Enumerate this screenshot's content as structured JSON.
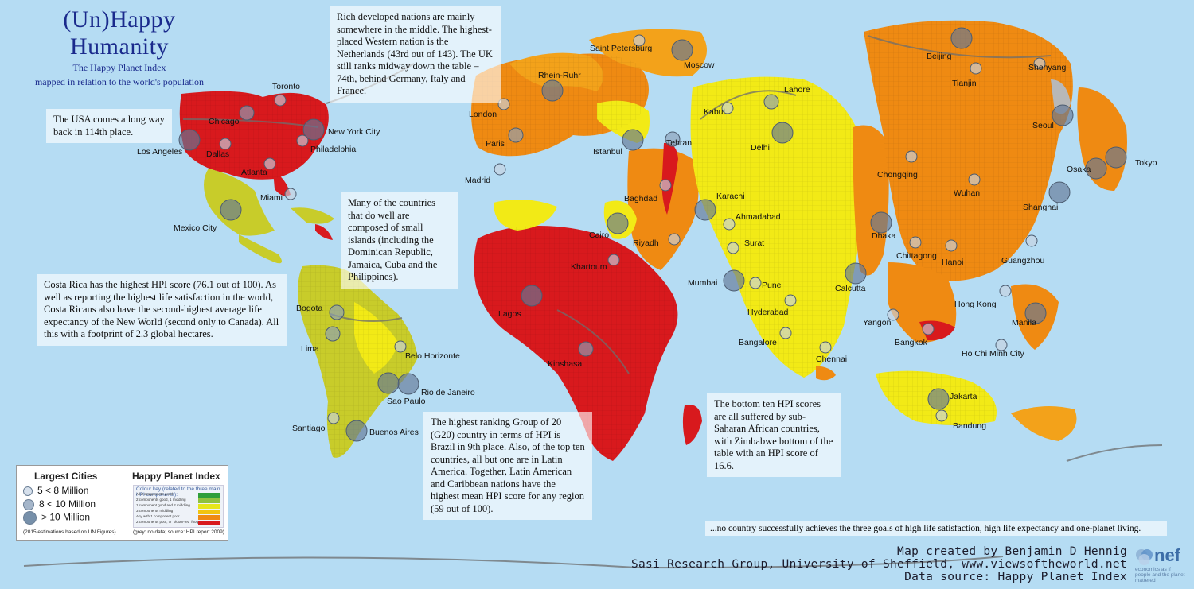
{
  "title": {
    "main": "(Un)Happy Humanity",
    "subtitle_1": "The Happy Planet Index",
    "subtitle_2": "mapped in relation to the world's population"
  },
  "notes": {
    "netherlands": "Rich developed nations are mainly somewhere in the middle. The highest-placed Western nation is the Netherlands (43rd out of 143). The UK still ranks midway down the table – 74th, behind Germany, Italy and France.",
    "usa": "The USA comes a long way back in 114th place.",
    "islands": "Many of the countries that do well are composed of small islands (including the Dominican Republic, Jamaica, Cuba and the Philippines).",
    "costa_rica": "Costa Rica has the highest HPI score (76.1 out of 100). As well as reporting the highest life satisfaction in the world, Costa Ricans also have the second-highest average life expectancy of the New World (second only to Canada). All this with a footprint of 2.3 global hectares.",
    "g20": "The highest ranking Group of 20 (G20) country in terms of HPI is Brazil in 9th place. Also, of the top ten countries, all but one are in Latin America. Together, Latin American and Caribbean nations have the highest mean HPI score for any region (59 out of 100).",
    "bottom_ten": "The bottom ten HPI scores are all suffered by sub-Saharan African countries, with Zimbabwe bottom of the table with an HPI score of 16.6.",
    "quote": "...no country successfully achieves the three goals of high life satisfaction, high life expectancy and one-planet living."
  },
  "legend": {
    "cities_title": "Largest Cities",
    "hpi_title": "Happy Planet Index",
    "size_small": "5 < 8 Million",
    "size_medium": "8 < 10 Million",
    "size_large": "> 10 Million",
    "cities_note": "(2015 estimations based on UN Figures)",
    "hpi_note": "(grey: no data; source: HPI report 2009)",
    "hpi_key_title": "Colour key (related to the three main HPI components):",
    "hpi_rows": [
      {
        "label": "All 3 components good",
        "color": "#2e9e3a"
      },
      {
        "label": "2 components good, 1 middling",
        "color": "#8fc23e"
      },
      {
        "label": "1 component good and 2 middling",
        "color": "#e6e61c"
      },
      {
        "label": "3 components middling",
        "color": "#f1c40f"
      },
      {
        "label": "Any with 1 component poor",
        "color": "#ef8a12"
      },
      {
        "label": "2 components poor, or 'bloom-red' footprint",
        "color": "#d8191d"
      }
    ]
  },
  "footer": {
    "credit_1": "Map created by Benjamin D Hennig",
    "credit_2": "Sasi Research Group, University of Sheffield, www.viewsoftheworld.net",
    "credit_3": "Data source: Happy Planet Index",
    "logo": "nef",
    "logo_tag": "economics as if people and the planet mattered"
  },
  "colors": {
    "ocean": "#b5dcf3",
    "red": "#d8191d",
    "orange": "#ef8a12",
    "light_orange": "#f3a21a",
    "yellow": "#f2ea16",
    "yellow_green": "#c8cc2a",
    "grey": "#b8b8b8",
    "city_fill": "rgba(120,140,170,0.55)"
  },
  "cities": [
    {
      "name": "Toronto",
      "size": "small"
    },
    {
      "name": "Chicago",
      "size": "medium"
    },
    {
      "name": "New York City",
      "size": "large"
    },
    {
      "name": "Los Angeles",
      "size": "large"
    },
    {
      "name": "Dallas",
      "size": "small"
    },
    {
      "name": "Philadelphia",
      "size": "small"
    },
    {
      "name": "Atlanta",
      "size": "small"
    },
    {
      "name": "Miami",
      "size": "small"
    },
    {
      "name": "Mexico City",
      "size": "large"
    },
    {
      "name": "Bogota",
      "size": "medium"
    },
    {
      "name": "Lima",
      "size": "medium"
    },
    {
      "name": "Belo Horizonte",
      "size": "small"
    },
    {
      "name": "Rio de Janeiro",
      "size": "large"
    },
    {
      "name": "Sao Paulo",
      "size": "large"
    },
    {
      "name": "Santiago",
      "size": "small"
    },
    {
      "name": "Buenos Aires",
      "size": "large"
    },
    {
      "name": "London",
      "size": "small"
    },
    {
      "name": "Paris",
      "size": "medium"
    },
    {
      "name": "Madrid",
      "size": "small"
    },
    {
      "name": "Rhein-Ruhr",
      "size": "large"
    },
    {
      "name": "Saint Petersburg",
      "size": "small"
    },
    {
      "name": "Moscow",
      "size": "large"
    },
    {
      "name": "Istanbul",
      "size": "large"
    },
    {
      "name": "Tehran",
      "size": "medium"
    },
    {
      "name": "Baghdad",
      "size": "small"
    },
    {
      "name": "Cairo",
      "size": "large"
    },
    {
      "name": "Riyadh",
      "size": "small"
    },
    {
      "name": "Khartoum",
      "size": "small"
    },
    {
      "name": "Lagos",
      "size": "large"
    },
    {
      "name": "Kinshasa",
      "size": "medium"
    },
    {
      "name": "Kabul",
      "size": "small"
    },
    {
      "name": "Lahore",
      "size": "medium"
    },
    {
      "name": "Karachi",
      "size": "large"
    },
    {
      "name": "Delhi",
      "size": "large"
    },
    {
      "name": "Ahmadabad",
      "size": "small"
    },
    {
      "name": "Surat",
      "size": "small"
    },
    {
      "name": "Mumbai",
      "size": "large"
    },
    {
      "name": "Pune",
      "size": "small"
    },
    {
      "name": "Hyderabad",
      "size": "small"
    },
    {
      "name": "Bangalore",
      "size": "small"
    },
    {
      "name": "Chennai",
      "size": "small"
    },
    {
      "name": "Calcutta",
      "size": "large"
    },
    {
      "name": "Dhaka",
      "size": "large"
    },
    {
      "name": "Chittagong",
      "size": "small"
    },
    {
      "name": "Yangon",
      "size": "small"
    },
    {
      "name": "Bangkok",
      "size": "small"
    },
    {
      "name": "Hanoi",
      "size": "small"
    },
    {
      "name": "Ho Chi Minh City",
      "size": "small"
    },
    {
      "name": "Beijing",
      "size": "large"
    },
    {
      "name": "Tianjin",
      "size": "small"
    },
    {
      "name": "Shenyang",
      "size": "small"
    },
    {
      "name": "Seoul",
      "size": "large"
    },
    {
      "name": "Tokyo",
      "size": "large"
    },
    {
      "name": "Osaka",
      "size": "large"
    },
    {
      "name": "Chongqing",
      "size": "small"
    },
    {
      "name": "Wuhan",
      "size": "small"
    },
    {
      "name": "Shanghai",
      "size": "large"
    },
    {
      "name": "Guangzhou",
      "size": "small"
    },
    {
      "name": "Hong Kong",
      "size": "small"
    },
    {
      "name": "Manila",
      "size": "large"
    },
    {
      "name": "Jakarta",
      "size": "large"
    },
    {
      "name": "Bandung",
      "size": "small"
    }
  ]
}
